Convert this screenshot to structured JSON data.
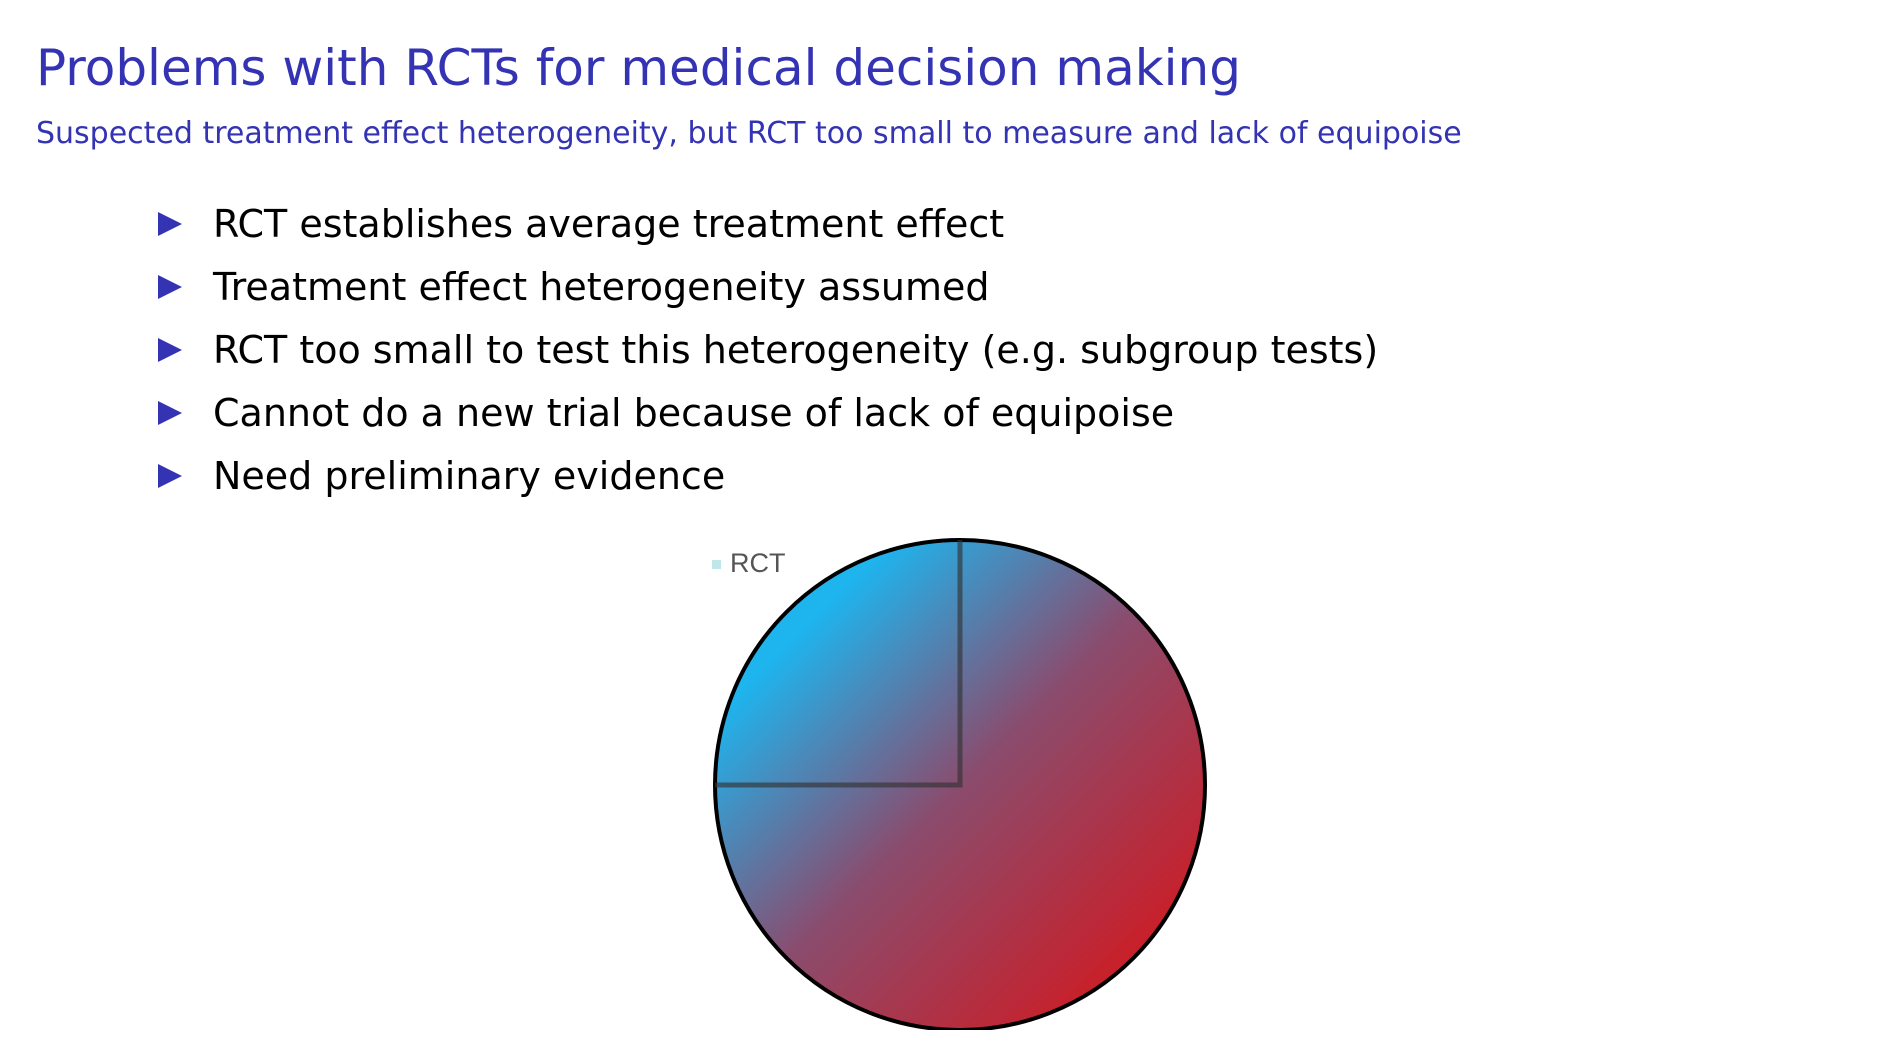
{
  "slide": {
    "title": "Problems with RCTs for medical decision making",
    "subtitle": "Suspected treatment effect heterogeneity, but RCT too small to measure and lack of equipoise",
    "bullets": [
      "RCT establishes average treatment effect",
      "Treatment effect heterogeneity assumed",
      "RCT too small to test this heterogeneity (e.g. subgroup tests)",
      "Cannot do a new trial because of lack of equipoise",
      "Need preliminary evidence"
    ],
    "bullet_icon": "triangle-right-icon",
    "accent_color": "#3333b3"
  },
  "figure": {
    "legend_label": "RCT",
    "legend_swatch_color": "#bfe6e8",
    "gradient_start_color": "#1eb4ee",
    "gradient_end_color": "#c8202a",
    "outline_color": "#000000"
  }
}
